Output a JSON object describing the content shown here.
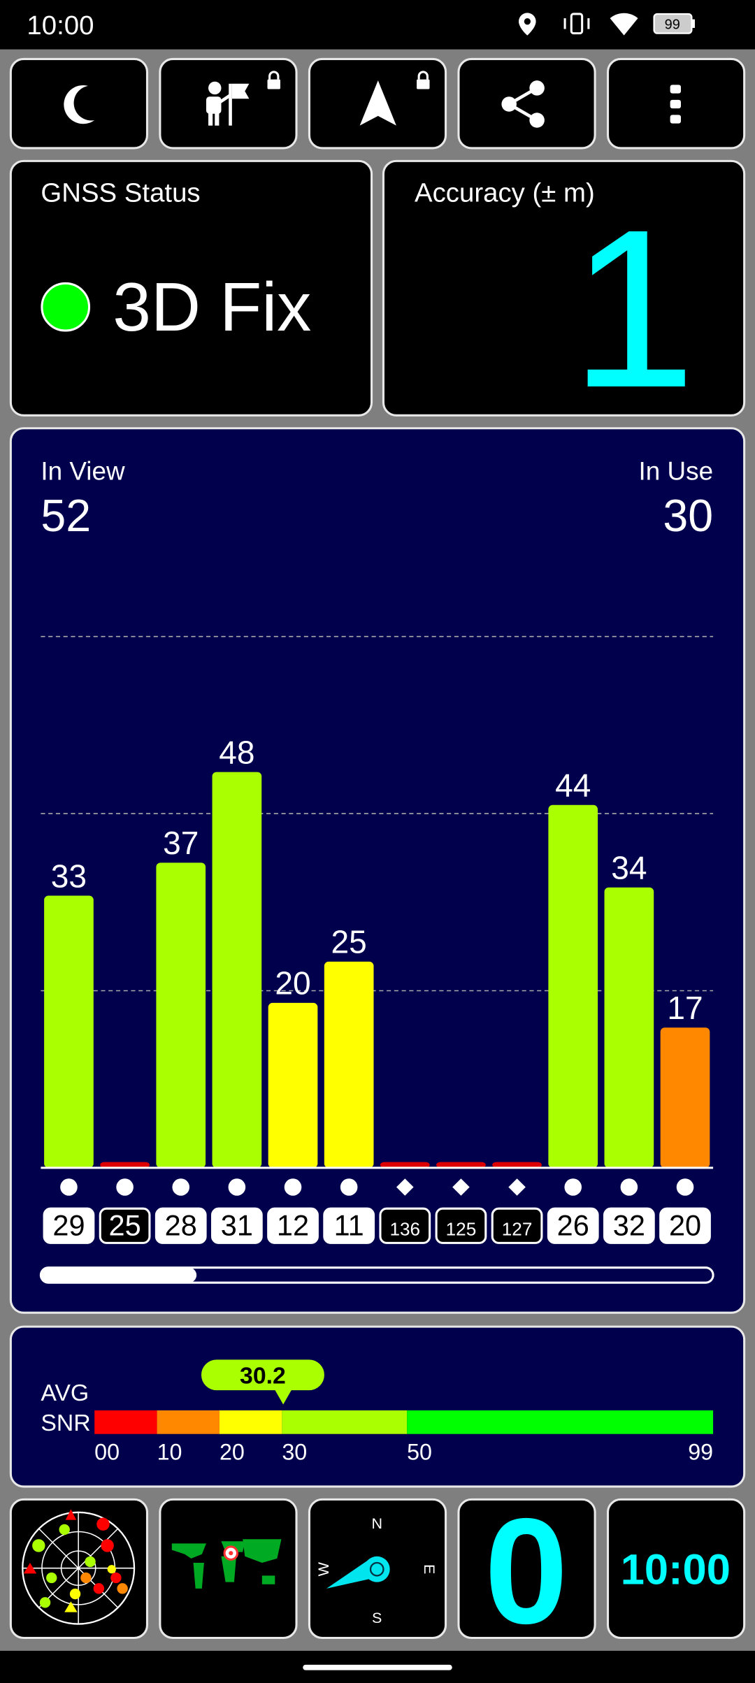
{
  "status_bar": {
    "time": "10:00",
    "battery": 99
  },
  "gnss_status": {
    "title": "GNSS Status",
    "fix": "3D Fix"
  },
  "accuracy": {
    "title": "Accuracy (± m)",
    "value": 1
  },
  "satellites": {
    "in_view_label": "In View",
    "in_view": 52,
    "in_use_label": "In Use",
    "in_use": 30
  },
  "chart_data": {
    "type": "bar",
    "categories": [
      "29",
      "25",
      "28",
      "31",
      "12",
      "11",
      "136",
      "125",
      "127",
      "26",
      "32",
      "20"
    ],
    "values": [
      33,
      0.7,
      37,
      48,
      20,
      25,
      0.7,
      0.7,
      0.7,
      44,
      34,
      17
    ],
    "value_labels": [
      "33",
      null,
      "37",
      "48",
      "20",
      "25",
      null,
      null,
      null,
      "44",
      "34",
      "17"
    ],
    "colors": [
      "#aaff00",
      "#dd0000",
      "#aaff00",
      "#aaff00",
      "#ffff00",
      "#ffff00",
      "#dd0000",
      "#dd0000",
      "#dd0000",
      "#aaff00",
      "#aaff00",
      "#ff8800"
    ],
    "markers": [
      "circle",
      "circle",
      "circle",
      "circle",
      "circle",
      "circle",
      "diamond",
      "diamond",
      "diamond",
      "circle",
      "circle",
      "circle"
    ],
    "used": [
      true,
      false,
      true,
      true,
      true,
      true,
      false,
      false,
      false,
      true,
      true,
      true
    ],
    "ylim": [
      0,
      66
    ]
  },
  "snr": {
    "label_top": "AVG",
    "label_bottom": "SNR",
    "average": 30.2,
    "xlim": [
      0,
      99
    ],
    "xticks": [
      {
        "value": 0,
        "label": "00"
      },
      10,
      20,
      30,
      50,
      99
    ],
    "segments": [
      {
        "from": 0,
        "to": 10,
        "color": "#ff0000"
      },
      {
        "from": 10,
        "to": 20,
        "color": "#ff8800"
      },
      {
        "from": 20,
        "to": 30,
        "color": "#ffff00"
      },
      {
        "from": 30,
        "to": 50,
        "color": "#aaff00"
      },
      {
        "from": 50,
        "to": 99,
        "color": "#00ff00"
      }
    ]
  },
  "compass": {
    "north": "N",
    "east": "E",
    "south": "S",
    "west": "W"
  },
  "speed": 0,
  "clock": "10:00"
}
